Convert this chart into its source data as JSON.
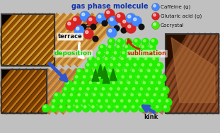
{
  "title": "gas phase molecule",
  "legend_items": [
    {
      "label": "Caffeine (g)",
      "color": "#4488ff"
    },
    {
      "label": "Glutaric acid (g)",
      "color": "#dd2222"
    },
    {
      "label": "Cocrystal",
      "color": "#44ee00"
    }
  ],
  "label_deposition": "deposition",
  "label_terrace": "terrace",
  "label_sublimation": "sublimation",
  "label_kink": "kink",
  "bg_color": "#cccccc",
  "green_color": "#22ee00",
  "blue_sphere": "#4488ff",
  "red_sphere": "#dd2222",
  "black_sphere": "#111111",
  "green_sphere": "#44ee00",
  "arrow_blue": "#3355cc",
  "arrow_white": "#ffffff",
  "arrow_red": "#cc2200",
  "image_bg": "#c0c0c0",
  "afm_bg": "#0a0500",
  "afm_stripe1": "#bb6600",
  "afm_stripe2": "#ffaa44",
  "afm_br_bg": "#1a0800",
  "afm_br_stripe": "#995522"
}
